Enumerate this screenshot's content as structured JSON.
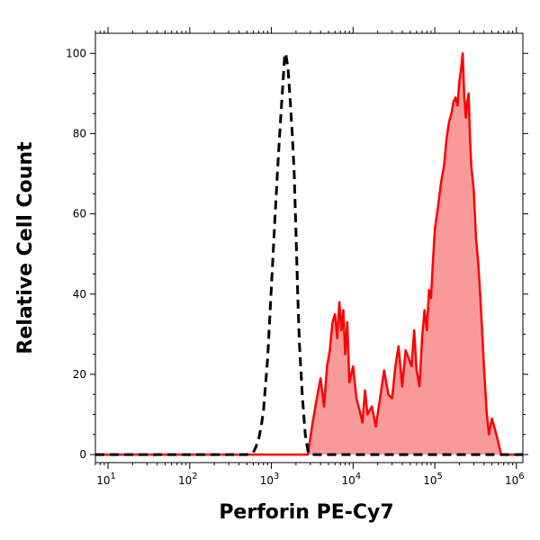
{
  "chart_data": {
    "type": "area",
    "title": "",
    "xlabel": "Perforin PE-Cy7",
    "ylabel": "Relative Cell Count",
    "xscale": "log",
    "xlim": [
      7,
      1200000
    ],
    "ylim": [
      -2,
      105
    ],
    "yticks": [
      {
        "value": 0,
        "label": "0"
      },
      {
        "value": 20,
        "label": "20"
      },
      {
        "value": 40,
        "label": "40"
      },
      {
        "value": 60,
        "label": "60"
      },
      {
        "value": 80,
        "label": "80"
      },
      {
        "value": 100,
        "label": "100"
      }
    ],
    "xticks": [
      {
        "value": 10,
        "base": "10",
        "exp": "1"
      },
      {
        "value": 100,
        "base": "10",
        "exp": "2"
      },
      {
        "value": 1000,
        "base": "10",
        "exp": "3"
      },
      {
        "value": 10000,
        "base": "10",
        "exp": "4"
      },
      {
        "value": 100000,
        "base": "10",
        "exp": "5"
      },
      {
        "value": 1000000,
        "base": "10",
        "exp": "6"
      }
    ],
    "grid": false,
    "legend": "none",
    "series": [
      {
        "style": "dashed",
        "color": "#000000",
        "fill": "none",
        "x": [
          7,
          500,
          600,
          650,
          700,
          750,
          800,
          900,
          1000,
          1100,
          1200,
          1300,
          1400,
          1450,
          1500,
          1600,
          1700,
          1800,
          1900,
          2000,
          2100,
          2200,
          2400,
          2600,
          2800,
          3000,
          10000,
          1200000
        ],
        "y": [
          0,
          0,
          0.5,
          2,
          4,
          7,
          11,
          24,
          42,
          58,
          72,
          84,
          94,
          99,
          100,
          96,
          88,
          80,
          70,
          55,
          40,
          28,
          14,
          5,
          1,
          0,
          0,
          0
        ]
      },
      {
        "style": "solid",
        "color": "#ff0000",
        "fill": "#f99a9a",
        "x": [
          7,
          2800,
          3200,
          3600,
          4000,
          4400,
          4800,
          5200,
          5600,
          6000,
          6400,
          6800,
          7200,
          7600,
          8000,
          8500,
          9000,
          10000,
          11000,
          12000,
          13000,
          14000,
          15000,
          17000,
          19000,
          21000,
          24000,
          27000,
          30000,
          33000,
          36000,
          40000,
          44000,
          48000,
          52000,
          56000,
          60000,
          65000,
          70000,
          75000,
          80000,
          85000,
          90000,
          95000,
          100000,
          110000,
          120000,
          130000,
          140000,
          150000,
          160000,
          170000,
          180000,
          190000,
          200000,
          210000,
          220000,
          230000,
          240000,
          250000,
          260000,
          270000,
          280000,
          300000,
          320000,
          340000,
          360000,
          380000,
          400000,
          430000,
          460000,
          500000,
          550000,
          600000,
          650000,
          700000,
          1200000
        ],
        "y": [
          0,
          0,
          8,
          14,
          19,
          12,
          22,
          26,
          33,
          35,
          29,
          38,
          31,
          36,
          25,
          33,
          18,
          22,
          14,
          11,
          8,
          16,
          10,
          12,
          7,
          13,
          21,
          15,
          14,
          22,
          27,
          17,
          26,
          24,
          22,
          31,
          21,
          17,
          29,
          36,
          31,
          41,
          39,
          48,
          56,
          62,
          68,
          72,
          79,
          83,
          85,
          88,
          89,
          87,
          93,
          96,
          100,
          89,
          84,
          88,
          90,
          79,
          72,
          66,
          54,
          48,
          40,
          31,
          22,
          11,
          5,
          9,
          6,
          3,
          0,
          0,
          0
        ]
      }
    ]
  }
}
